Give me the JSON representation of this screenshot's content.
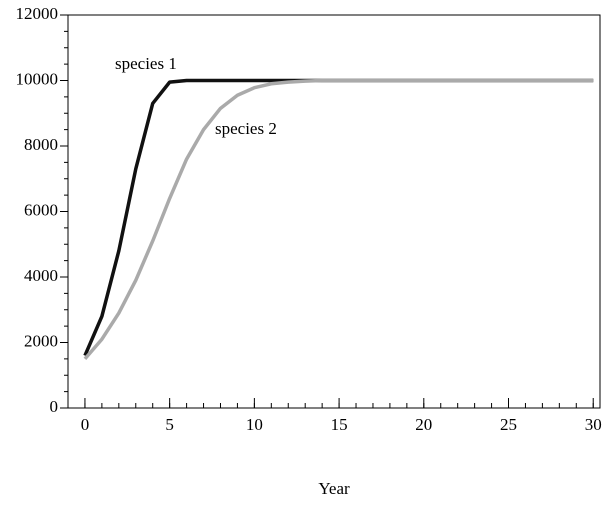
{
  "chart_data": {
    "type": "line",
    "xlabel": "Year",
    "x": [
      0,
      1,
      2,
      3,
      4,
      5,
      6,
      7,
      8,
      9,
      10,
      11,
      12,
      13,
      14,
      15,
      16,
      17,
      18,
      19,
      20,
      21,
      22,
      23,
      24,
      25,
      26,
      27,
      28,
      29,
      30
    ],
    "series": [
      {
        "name": "species 1",
        "color": "#111111",
        "values": [
          1600,
          2800,
          4800,
          7300,
          9300,
          9950,
          10000,
          10000,
          10000,
          10000,
          10000,
          10000,
          10000,
          10000,
          10000,
          10000,
          10000,
          10000,
          10000,
          10000,
          10000,
          10000,
          10000,
          10000,
          10000,
          10000,
          10000,
          10000,
          10000,
          10000,
          10000
        ]
      },
      {
        "name": "species 2",
        "color": "#aaaaaa",
        "values": [
          1500,
          2100,
          2900,
          3900,
          5100,
          6400,
          7600,
          8500,
          9150,
          9550,
          9780,
          9900,
          9950,
          9980,
          10000,
          10000,
          10000,
          10000,
          10000,
          10000,
          10000,
          10000,
          10000,
          10000,
          10000,
          10000,
          10000,
          10000,
          10000,
          10000,
          10000
        ]
      }
    ],
    "xlim": [
      -1,
      30.4
    ],
    "ylim": [
      0,
      12000
    ],
    "xticks": [
      0,
      5,
      10,
      15,
      20,
      25,
      30
    ],
    "yticks": [
      0,
      2000,
      4000,
      6000,
      8000,
      10000,
      12000
    ],
    "x_minor_step": 1,
    "y_minor_step": 500
  }
}
